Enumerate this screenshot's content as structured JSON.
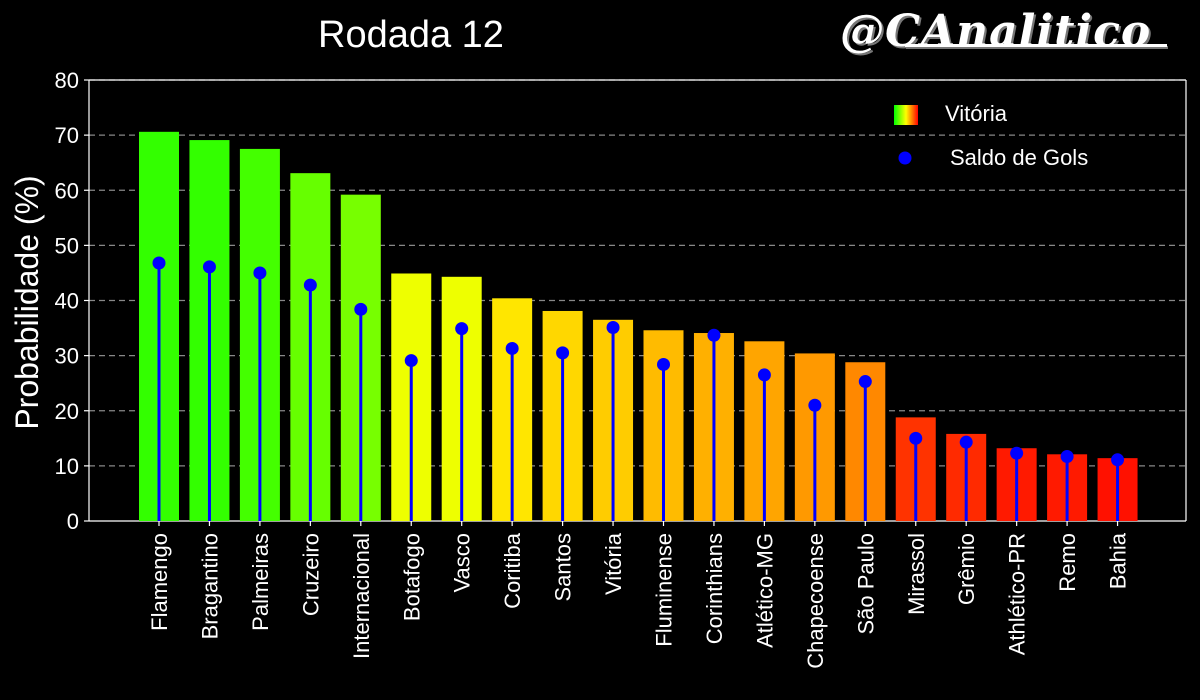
{
  "header": {
    "title": "Rodada 12",
    "brand": "@CAnalitico"
  },
  "colors": {
    "background": "#000000",
    "axis": "#ffffff",
    "grid": "#888888",
    "stem": "#0000ff",
    "marker": "#0000ff",
    "gradient_low": "#ff0000",
    "gradient_mid": "#ffff00",
    "gradient_high": "#00ff00"
  },
  "chart_data": {
    "type": "bar",
    "title": "Rodada 12",
    "xlabel": "",
    "ylabel": "Probabilidade (%)",
    "ylim": [
      0,
      80
    ],
    "yticks": [
      0,
      10,
      20,
      30,
      40,
      50,
      60,
      70,
      80
    ],
    "grid": "horizontal dashed",
    "legend_position": "top-right",
    "categories": [
      "Flamengo",
      "Bragantino",
      "Palmeiras",
      "Cruzeiro",
      "Internacional",
      "Botafogo",
      "Vasco",
      "Coritiba",
      "Santos",
      "Vitória",
      "Fluminense",
      "Corinthians",
      "Atlético-MG",
      "Chapecoense",
      "São Paulo",
      "Mirassol",
      "Grêmio",
      "Athlético-PR",
      "Remo",
      "Bahia"
    ],
    "series": [
      {
        "name": "Vitória",
        "kind": "bar",
        "values": [
          70.6,
          69.1,
          67.5,
          63.1,
          59.2,
          44.9,
          44.3,
          40.4,
          38.1,
          36.5,
          34.6,
          34.1,
          32.6,
          30.4,
          28.8,
          18.8,
          15.8,
          13.2,
          12.1,
          11.4
        ],
        "colors": [
          "#33ff00",
          "#33ff00",
          "#44ff00",
          "#66ff00",
          "#77ff00",
          "#eeff00",
          "#eeff00",
          "#ffe600",
          "#ffd700",
          "#ffcc00",
          "#ffbb00",
          "#ffb000",
          "#ffa500",
          "#ff9900",
          "#ff8800",
          "#ff3300",
          "#ff2a00",
          "#ff1a00",
          "#ff1a00",
          "#ff1100"
        ]
      },
      {
        "name": "Saldo de Gols",
        "kind": "stem",
        "values": [
          46.8,
          46.1,
          45.0,
          42.8,
          38.4,
          29.1,
          34.9,
          31.3,
          30.5,
          35.1,
          28.4,
          33.7,
          26.5,
          21.0,
          25.3,
          15.0,
          14.3,
          12.3,
          11.7,
          11.1
        ]
      }
    ]
  }
}
